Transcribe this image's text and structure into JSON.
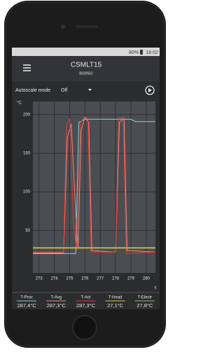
{
  "status_bar": {
    "battery": "80%",
    "time": "16:02"
  },
  "header": {
    "title": "CSMLT15",
    "subtitle": "8020562"
  },
  "controls": {
    "autoscale_label": "Autoscale mode",
    "autoscale_value": "Off"
  },
  "chart_data": {
    "type": "line",
    "y_unit": "°C",
    "x_unit": "s",
    "xlim": [
      272.6,
      280.6
    ],
    "ylim": [
      -5,
      217
    ],
    "xticks": [
      273,
      274,
      275,
      276,
      277,
      278,
      279,
      280
    ],
    "yticks": [
      50,
      100,
      150,
      200
    ],
    "grid": true,
    "series": [
      {
        "name": "T-Proc",
        "readout": "287,4°C",
        "color": "#7fd6e6",
        "x": [
          272.6,
          275.4,
          275.6,
          276.0,
          279.0,
          279.3,
          280.6
        ],
        "values": [
          20,
          20,
          190,
          194,
          194,
          191,
          191
        ]
      },
      {
        "name": "T-Avg",
        "readout": "287,3°C",
        "color": "#f28b82",
        "x": [
          272.6,
          274.6,
          274.85,
          275.1,
          275.35,
          275.55,
          275.75,
          276.0,
          276.25,
          276.45,
          278.0,
          278.25,
          278.55,
          278.75,
          280.6
        ],
        "values": [
          21,
          21,
          170,
          188,
          90,
          28,
          180,
          196,
          190,
          24,
          22,
          190,
          195,
          24,
          22
        ]
      },
      {
        "name": "T-Act",
        "readout": "287,3°C",
        "color": "#e53935",
        "x": [
          272.6,
          274.6,
          274.8,
          275.0,
          275.25,
          275.45,
          275.7,
          276.0,
          276.2,
          276.4,
          278.0,
          278.2,
          278.5,
          278.7,
          280.6
        ],
        "values": [
          22,
          22,
          185,
          195,
          60,
          25,
          190,
          197,
          195,
          22,
          22,
          195,
          197,
          20,
          22
        ]
      },
      {
        "name": "T-Head",
        "readout": "27,1°C",
        "color": "#e6c84a",
        "x": [
          272.6,
          280.6
        ],
        "values": [
          27.1,
          27.1
        ]
      },
      {
        "name": "T-Electr",
        "readout": "27,8°C",
        "color": "#7cc47a",
        "x": [
          272.6,
          280.6
        ],
        "values": [
          27.8,
          27.8
        ]
      }
    ]
  }
}
